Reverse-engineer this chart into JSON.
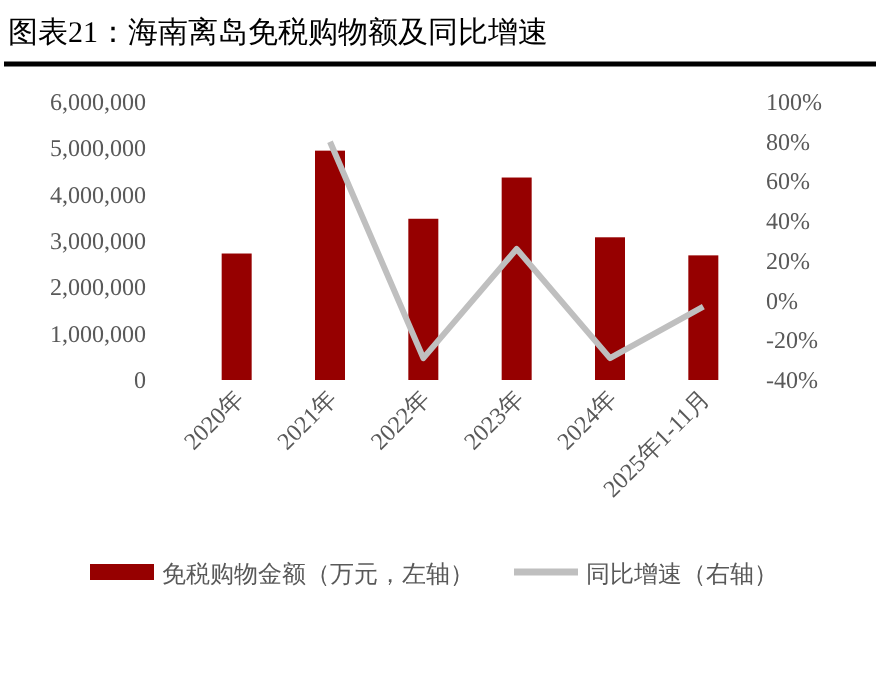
{
  "chart_data": {
    "type": "bar",
    "title": "图表21：海南离岛免税购物额及同比增速",
    "categories": [
      "2020年",
      "2021年",
      "2022年",
      "2023年",
      "2024年",
      "2025年1-11月"
    ],
    "series": [
      {
        "name": "免税购物金额（万元，左轴）",
        "color": "#960000",
        "values": [
          2730000,
          4950000,
          3480000,
          4370000,
          3080000,
          2690000
        ]
      },
      {
        "name": "同比增速（右轴）",
        "type": "line",
        "axis": "y2",
        "color": "#bfbfbf",
        "values": [
          null,
          80,
          -29,
          26,
          -29,
          -3
        ]
      }
    ],
    "ylim": [
      0,
      6000000
    ],
    "yticks": [
      {
        "value": 0,
        "label": "0"
      },
      {
        "value": 1000000,
        "label": "1,000,000"
      },
      {
        "value": 2000000,
        "label": "2,000,000"
      },
      {
        "value": 3000000,
        "label": "3,000,000"
      },
      {
        "value": 4000000,
        "label": "4,000,000"
      },
      {
        "value": 5000000,
        "label": "5,000,000"
      },
      {
        "value": 6000000,
        "label": "6,000,000"
      }
    ],
    "y2lim": [
      -40,
      100
    ],
    "y2ticks": [
      {
        "value": -40,
        "label": "-40%"
      },
      {
        "value": -20,
        "label": "-20%"
      },
      {
        "value": 0,
        "label": "0%"
      },
      {
        "value": 20,
        "label": "20%"
      },
      {
        "value": 40,
        "label": "40%"
      },
      {
        "value": 60,
        "label": "60%"
      },
      {
        "value": 80,
        "label": "80%"
      },
      {
        "value": 100,
        "label": "100%"
      }
    ],
    "legend": "bottom",
    "grid": false,
    "marker": "none"
  }
}
